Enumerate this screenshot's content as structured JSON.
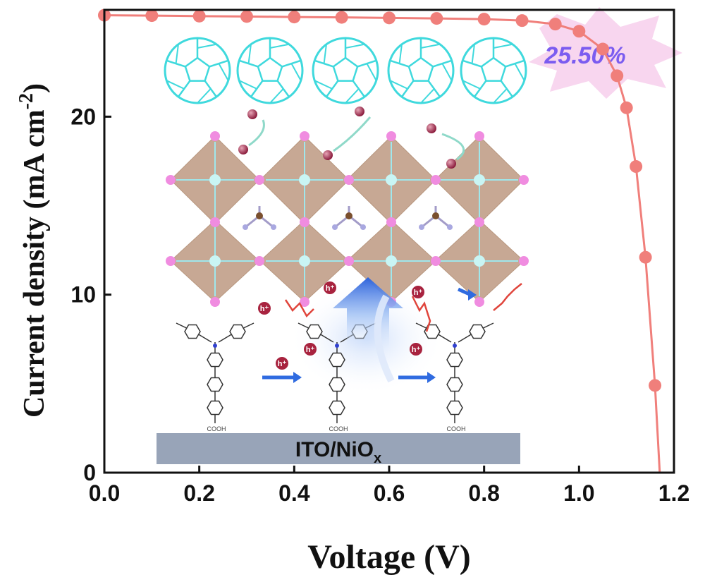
{
  "chart_data": {
    "type": "line",
    "xlabel": "Voltage (V)",
    "ylabel_main": "Current density (mA cm",
    "ylabel_sup": "-2",
    "ylabel_close": ")",
    "xlim": [
      0.0,
      1.2
    ],
    "ylim": [
      0,
      26
    ],
    "x_ticks": [
      "0.0",
      "0.2",
      "0.4",
      "0.6",
      "0.8",
      "1.0",
      "1.2"
    ],
    "x_tick_values": [
      0.0,
      0.2,
      0.4,
      0.6,
      0.8,
      1.0,
      1.2
    ],
    "y_ticks": [
      "0",
      "10",
      "20"
    ],
    "y_tick_values": [
      0,
      10,
      20
    ],
    "series": [
      {
        "color": "#f07f7b",
        "x": [
          0.0,
          0.1,
          0.2,
          0.3,
          0.4,
          0.5,
          0.6,
          0.7,
          0.8,
          0.88,
          0.95,
          1.0,
          1.05,
          1.08,
          1.1,
          1.12,
          1.14,
          1.16,
          1.17
        ],
        "y": [
          25.7,
          25.68,
          25.65,
          25.63,
          25.6,
          25.58,
          25.55,
          25.52,
          25.48,
          25.4,
          25.2,
          24.8,
          23.8,
          22.3,
          20.5,
          17.2,
          12.1,
          4.9,
          0
        ]
      }
    ],
    "grid": false,
    "annotations": [
      {
        "text": "25.50%"
      }
    ]
  },
  "inset": {
    "substrate_label": "ITO/NiO",
    "substrate_sub": "x",
    "cooh_label": "COOH",
    "hole_label": "h⁺",
    "colors": {
      "fullerene": "#3fd9dd",
      "octahedron": "#c7a894",
      "halide": "#f08ce0",
      "substrate": "#98a4b8",
      "arrow": "#2f6be0",
      "badge": "#f8d6ef"
    }
  }
}
